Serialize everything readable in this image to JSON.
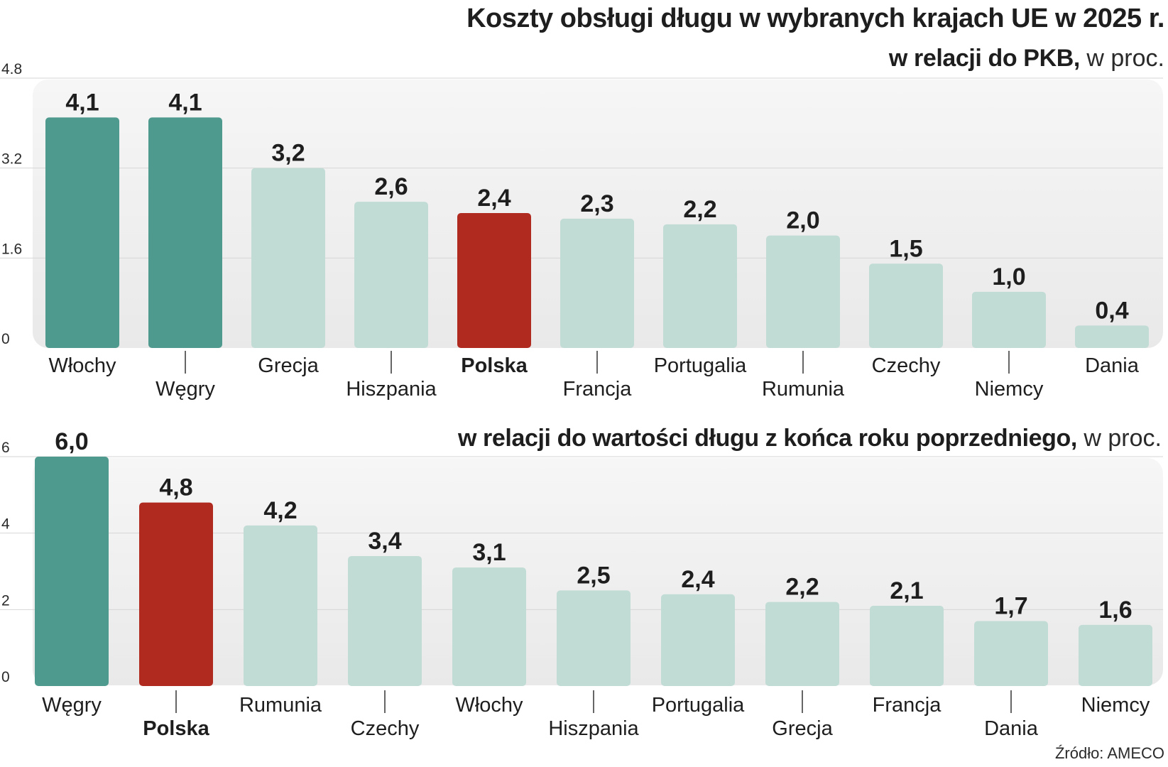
{
  "title": "Koszty obsługi długu w wybranych krajach UE w 2025 r.",
  "source": "Źródło: AMECO",
  "colors": {
    "highlight": "#4f9a8e",
    "poland": "#b02a20",
    "default": "#c1dbd5",
    "panel": "#ededed",
    "grid": "#d6d6d6"
  },
  "chart_data": [
    {
      "type": "bar",
      "subtitle_bold": "w relacji do PKB,",
      "subtitle_light": " w proc.",
      "categories": [
        "Włochy",
        "Węgry",
        "Grecja",
        "Hiszpania",
        "Polska",
        "Francja",
        "Portugalia",
        "Rumunia",
        "Czechy",
        "Niemcy",
        "Dania"
      ],
      "values": [
        4.1,
        4.1,
        3.2,
        2.6,
        2.4,
        2.3,
        2.2,
        2.0,
        1.5,
        1.0,
        0.4
      ],
      "value_labels": [
        "4,1",
        "4,1",
        "3,2",
        "2,6",
        "2,4",
        "2,3",
        "2,2",
        "2,0",
        "1,5",
        "1,0",
        "0,4"
      ],
      "bar_styles": [
        "highlight",
        "highlight",
        "default",
        "default",
        "poland",
        "default",
        "default",
        "default",
        "default",
        "default",
        "default"
      ],
      "yticks": [
        0,
        1.6,
        3.2,
        4.8
      ],
      "ytick_labels": [
        "0",
        "1.6",
        "3.2",
        "4.8"
      ],
      "ylim": [
        0,
        4.8
      ],
      "grid": true,
      "xlabel": "",
      "ylabel": ""
    },
    {
      "type": "bar",
      "subtitle_bold": "w relacji do wartości długu z końca roku poprzedniego,",
      "subtitle_light": " w proc.",
      "categories": [
        "Węgry",
        "Polska",
        "Rumunia",
        "Czechy",
        "Włochy",
        "Hiszpania",
        "Portugalia",
        "Grecja",
        "Francja",
        "Dania",
        "Niemcy"
      ],
      "values": [
        6.0,
        4.8,
        4.2,
        3.4,
        3.1,
        2.5,
        2.4,
        2.2,
        2.1,
        1.7,
        1.6
      ],
      "value_labels": [
        "6,0",
        "4,8",
        "4,2",
        "3,4",
        "3,1",
        "2,5",
        "2,4",
        "2,2",
        "2,1",
        "1,7",
        "1,6"
      ],
      "bar_styles": [
        "highlight",
        "poland",
        "default",
        "default",
        "default",
        "default",
        "default",
        "default",
        "default",
        "default",
        "default"
      ],
      "yticks": [
        0,
        2,
        4,
        6
      ],
      "ytick_labels": [
        "0",
        "2",
        "4",
        "6"
      ],
      "ylim": [
        0,
        6
      ],
      "grid": true,
      "xlabel": "",
      "ylabel": ""
    }
  ]
}
